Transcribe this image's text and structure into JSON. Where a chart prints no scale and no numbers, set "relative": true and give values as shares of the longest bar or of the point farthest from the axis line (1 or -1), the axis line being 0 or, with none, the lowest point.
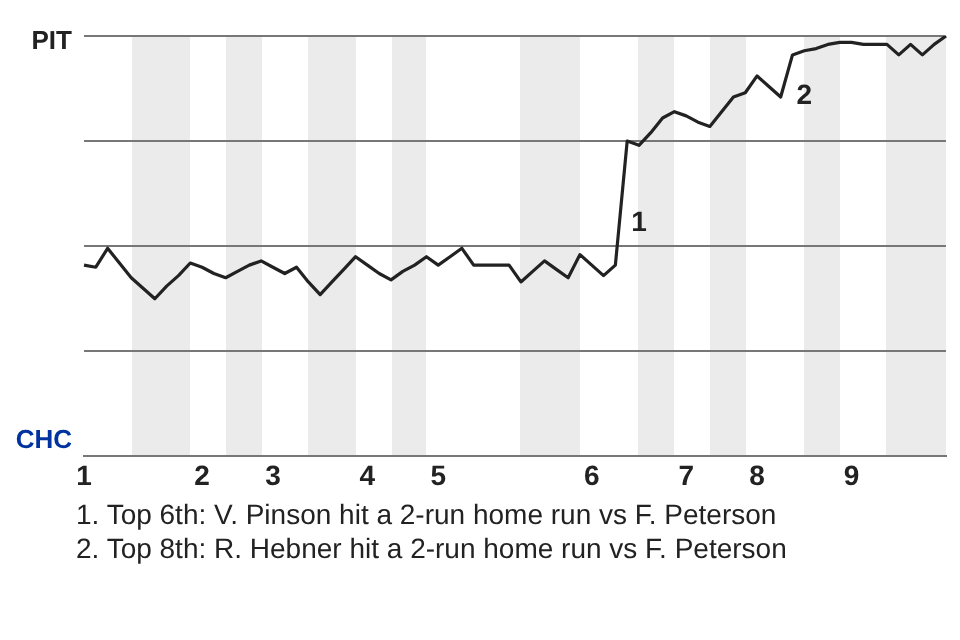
{
  "chart_data": {
    "type": "line",
    "relative": true,
    "categories": [
      "1",
      null,
      null,
      null,
      null,
      null,
      null,
      null,
      null,
      null,
      "2",
      null,
      null,
      null,
      null,
      null,
      "3",
      null,
      null,
      null,
      null,
      null,
      null,
      null,
      "4",
      null,
      null,
      null,
      null,
      null,
      "5",
      null,
      null,
      null,
      null,
      null,
      null,
      null,
      null,
      null,
      null,
      null,
      null,
      "6",
      null,
      null,
      null,
      null,
      null,
      null,
      null,
      "7",
      null,
      null,
      null,
      null,
      null,
      "8",
      null,
      null,
      null,
      null,
      null,
      null,
      null,
      "9",
      null,
      null,
      null,
      null,
      null,
      null,
      null,
      null
    ],
    "series": [
      {
        "color": "#222222",
        "values": [
          0.455,
          0.45,
          0.495,
          0.46,
          0.425,
          0.4,
          0.375,
          0.405,
          0.43,
          0.46,
          0.45,
          0.435,
          0.425,
          0.44,
          0.455,
          0.465,
          0.45,
          0.435,
          0.45,
          0.415,
          0.385,
          0.415,
          0.445,
          0.475,
          0.455,
          0.435,
          0.42,
          0.44,
          0.455,
          0.475,
          0.455,
          0.475,
          0.495,
          0.455,
          0.455,
          0.455,
          0.455,
          0.415,
          0.44,
          0.465,
          0.445,
          0.425,
          0.48,
          0.455,
          0.43,
          0.455,
          0.75,
          0.74,
          0.77,
          0.805,
          0.82,
          0.81,
          0.795,
          0.785,
          0.82,
          0.855,
          0.865,
          0.905,
          0.88,
          0.855,
          0.955,
          0.965,
          0.97,
          0.98,
          0.985,
          0.985,
          0.98,
          0.98,
          0.98,
          0.955,
          0.98,
          0.955,
          0.98,
          1
        ]
      }
    ],
    "grid": "y",
    "legend": false,
    "marker": "none",
    "line_style": "solid",
    "annotations": [
      "PIT",
      "CHC",
      "1",
      "2",
      "1. Top 6th: V. Pinson hit a 2-run home run vs F. Peterson",
      "2. Top 8th: R. Hebner hit a 2-run home run vs F. Peterson"
    ]
  }
}
